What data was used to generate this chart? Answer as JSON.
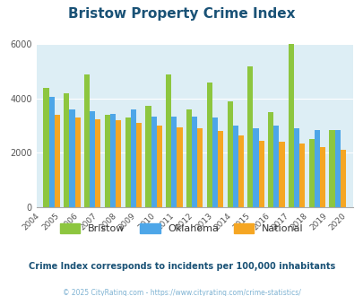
{
  "title": "Bristow Property Crime Index",
  "years": [
    2004,
    2005,
    2006,
    2007,
    2008,
    2009,
    2010,
    2011,
    2012,
    2013,
    2014,
    2015,
    2016,
    2017,
    2018,
    2019,
    2020
  ],
  "bristow": [
    null,
    4400,
    4200,
    4900,
    3400,
    3300,
    3750,
    4900,
    3600,
    4600,
    3900,
    5200,
    3500,
    6000,
    2500,
    2850,
    null
  ],
  "oklahoma": [
    null,
    4050,
    3600,
    3550,
    3450,
    3600,
    3350,
    3350,
    3350,
    3300,
    3000,
    2900,
    3000,
    2900,
    2850,
    2850,
    null
  ],
  "national": [
    null,
    3400,
    3300,
    3250,
    3200,
    3100,
    3000,
    2950,
    2900,
    2800,
    2650,
    2450,
    2400,
    2350,
    2200,
    2100,
    null
  ],
  "colors": {
    "bristow": "#8dc63f",
    "oklahoma": "#4da6e8",
    "national": "#f5a623"
  },
  "bg_color": "#ddeef5",
  "ylim": [
    0,
    6000
  ],
  "yticks": [
    0,
    2000,
    4000,
    6000
  ],
  "legend_labels": [
    "Bristow",
    "Oklahoma",
    "National"
  ],
  "subtitle": "Crime Index corresponds to incidents per 100,000 inhabitants",
  "footer": "© 2025 CityRating.com - https://www.cityrating.com/crime-statistics/",
  "title_color": "#1a5276",
  "subtitle_color": "#1a5276",
  "footer_color": "#7fb3d3"
}
